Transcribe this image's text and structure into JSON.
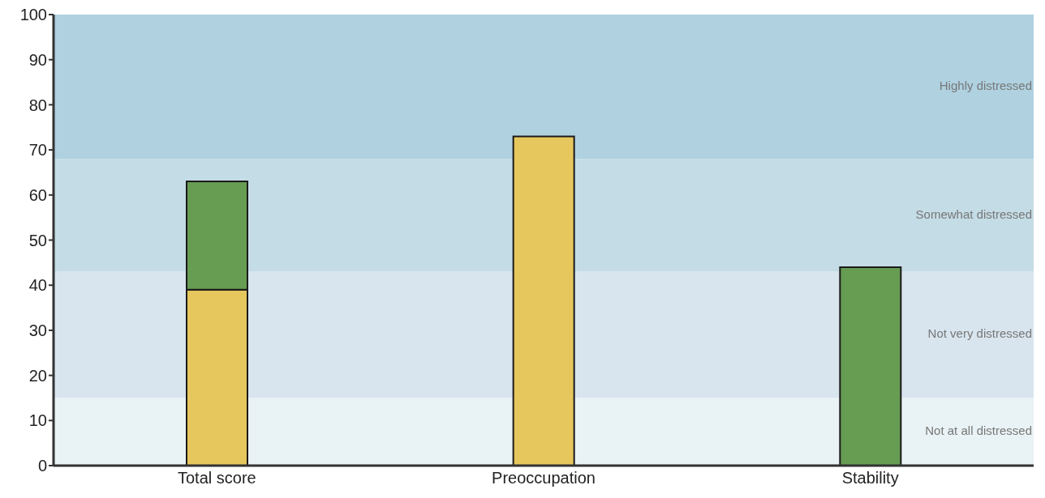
{
  "chart_data": {
    "type": "bar",
    "stacked": true,
    "categories": [
      "Total score",
      "Preoccupation",
      "Stability"
    ],
    "series": [
      {
        "color": "#e6c75e",
        "values": [
          39,
          73,
          null
        ]
      },
      {
        "color": "#679c53",
        "values": [
          24,
          null,
          44
        ]
      }
    ],
    "ylim": [
      0,
      100
    ],
    "yticks": [
      0,
      10,
      20,
      30,
      40,
      50,
      60,
      70,
      80,
      90,
      100
    ],
    "grid": false,
    "legend": false,
    "bands": [
      {
        "axis": "y",
        "from": 0,
        "to": 15,
        "label": "Not at all distressed",
        "color": "#e9f2f4"
      },
      {
        "axis": "y",
        "from": 15,
        "to": 43,
        "label": "Not very distressed",
        "color": "#d8e5ef"
      },
      {
        "axis": "y",
        "from": 43,
        "to": 68,
        "label": "Somewhat distressed",
        "color": "#c4dce5"
      },
      {
        "axis": "y",
        "from": 68,
        "to": 100,
        "label": "Highly distressed",
        "color": "#afd1e0"
      }
    ]
  }
}
